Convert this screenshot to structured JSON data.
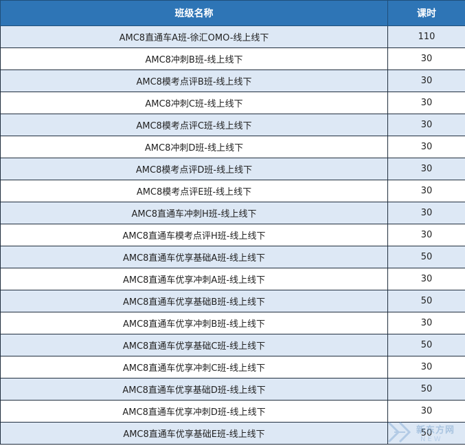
{
  "table": {
    "headers": {
      "name": "班级名称",
      "hours": "课时"
    },
    "rows": [
      {
        "name": "AMC8直通车A班-徐汇OMO-线上线下",
        "hours": "110"
      },
      {
        "name": "AMC8冲刺B班-线上线下",
        "hours": "30"
      },
      {
        "name": "AMC8模考点评B班-线上线下",
        "hours": "30"
      },
      {
        "name": "AMC8冲刺C班-线上线下",
        "hours": "30"
      },
      {
        "name": "AMC8模考点评C班-线上线下",
        "hours": "30"
      },
      {
        "name": "AMC8冲刺D班-线上线下",
        "hours": "30"
      },
      {
        "name": "AMC8模考点评D班-线上线下",
        "hours": "30"
      },
      {
        "name": "AMC8模考点评E班-线上线下",
        "hours": "30"
      },
      {
        "name": "AMC8直通车冲刺H班-线上线下",
        "hours": "30"
      },
      {
        "name": "AMC8直通车模考点评H班-线上线下",
        "hours": "30"
      },
      {
        "name": "AMC8直通车优享基础A班-线上线下",
        "hours": "50"
      },
      {
        "name": "AMC8直通车优享冲刺A班-线上线下",
        "hours": "30"
      },
      {
        "name": "AMC8直通车优享基础B班-线上线下",
        "hours": "50"
      },
      {
        "name": "AMC8直通车优享冲刺B班-线上线下",
        "hours": "30"
      },
      {
        "name": "AMC8直通车优享基础C班-线上线下",
        "hours": "50"
      },
      {
        "name": "AMC8直通车优享冲刺C班-线上线下",
        "hours": "30"
      },
      {
        "name": "AMC8直通车优享基础D班-线上线下",
        "hours": "50"
      },
      {
        "name": "AMC8直通车优享冲刺D班-线上线下",
        "hours": "30"
      },
      {
        "name": "AMC8直通车优享基础E班-线上线下",
        "hours": "50"
      }
    ]
  },
  "watermark": {
    "text": "新东方网",
    "subtext": "NEW"
  },
  "colors": {
    "header_bg": "#2e75b6",
    "row_alt_bg": "#dde8f5",
    "row_bg": "#ffffff"
  }
}
